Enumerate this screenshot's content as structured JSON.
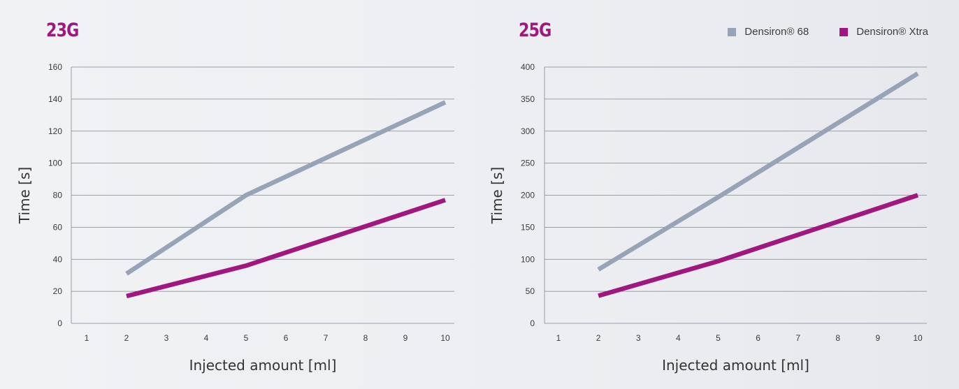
{
  "legend": [
    {
      "label": "Densiron® 68",
      "color": "#97a3b6"
    },
    {
      "label": "Densiron® Xtra",
      "color": "#a0177f"
    }
  ],
  "chart_data": [
    {
      "type": "line",
      "title": "23G",
      "xlabel": "Injected amount [ml]",
      "ylabel": "Time [s]",
      "categories": [
        1,
        2,
        3,
        4,
        5,
        6,
        7,
        8,
        9,
        10
      ],
      "yticks": [
        0,
        20,
        40,
        60,
        80,
        100,
        120,
        140,
        160
      ],
      "ylim": [
        0,
        160
      ],
      "grid": true,
      "series": [
        {
          "name": "Densiron® 68",
          "color": "#97a3b6",
          "x": [
            2,
            5,
            10
          ],
          "y": [
            31,
            80,
            138
          ]
        },
        {
          "name": "Densiron® Xtra",
          "color": "#a0177f",
          "x": [
            2,
            5,
            10
          ],
          "y": [
            17,
            36,
            77
          ]
        }
      ]
    },
    {
      "type": "line",
      "title": "25G",
      "xlabel": "Injected amount [ml]",
      "ylabel": "Time [s]",
      "categories": [
        1,
        2,
        3,
        4,
        5,
        6,
        7,
        8,
        9,
        10
      ],
      "yticks": [
        0,
        50,
        100,
        150,
        200,
        250,
        300,
        350,
        400
      ],
      "ylim": [
        0,
        400
      ],
      "grid": true,
      "legend": "top-right",
      "series": [
        {
          "name": "Densiron® 68",
          "color": "#97a3b6",
          "x": [
            2,
            5,
            10
          ],
          "y": [
            84,
            197,
            390
          ]
        },
        {
          "name": "Densiron® Xtra",
          "color": "#a0177f",
          "x": [
            2,
            5,
            10
          ],
          "y": [
            43,
            97,
            200
          ]
        }
      ]
    }
  ]
}
